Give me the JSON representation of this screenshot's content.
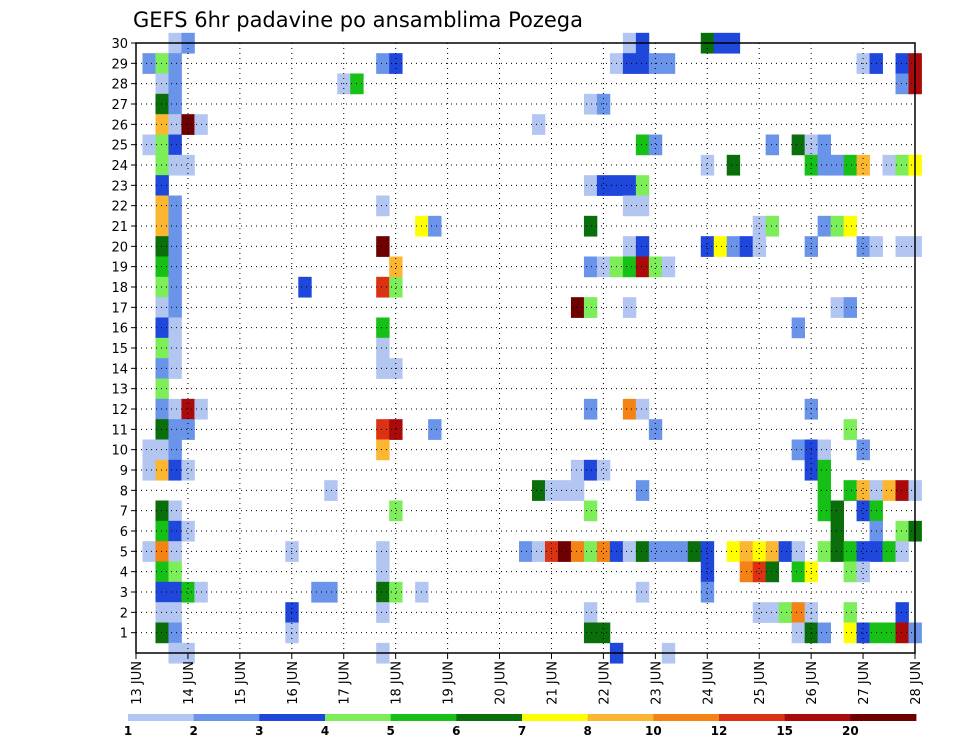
{
  "chart_data": {
    "type": "heatmap",
    "title": "GEFS 6hr padavine po ansamblima Pozega",
    "xlabel": "",
    "ylabel": "",
    "x_tick_labels": [
      "13 JUN",
      "14 JUN",
      "15 JUN",
      "16 JUN",
      "17 JUN",
      "18 JUN",
      "19 JUN",
      "20 JUN",
      "21 JUN",
      "22 JUN",
      "23 JUN",
      "24 JUN",
      "25 JUN",
      "26 JUN",
      "27 JUN",
      "28 JUN"
    ],
    "y_tick_labels": [
      "1",
      "2",
      "3",
      "4",
      "5",
      "6",
      "7",
      "8",
      "9",
      "10",
      "11",
      "12",
      "13",
      "14",
      "15",
      "16",
      "17",
      "18",
      "19",
      "20",
      "21",
      "22",
      "23",
      "24",
      "25",
      "26",
      "27",
      "28",
      "29",
      "30"
    ],
    "xlim": [
      0,
      15
    ],
    "ylim": [
      0,
      30
    ],
    "x_step_days": 0.25,
    "x_start_date": "13 JUN",
    "grid": true,
    "legend": {
      "placement": "bottom",
      "labels": [
        "1",
        "2",
        "3",
        "4",
        "5",
        "6",
        "7",
        "8",
        "10",
        "12",
        "15",
        "20"
      ],
      "colors": [
        "#b3c6f2",
        "#6a93ea",
        "#1f47db",
        "#7ded5a",
        "#16c016",
        "#0a6e0a",
        "#ffff00",
        "#fbb732",
        "#f58214",
        "#dc3214",
        "#aa0a0a",
        "#6e0000"
      ]
    },
    "cells": [
      [
        0.75,
        30,
        1
      ],
      [
        1.0,
        30,
        2
      ],
      [
        9.5,
        30,
        1
      ],
      [
        9.75,
        30,
        3
      ],
      [
        11.0,
        30,
        6
      ],
      [
        11.25,
        30,
        3
      ],
      [
        11.5,
        30,
        3
      ],
      [
        0.25,
        29,
        2
      ],
      [
        0.5,
        29,
        4
      ],
      [
        0.75,
        29,
        2
      ],
      [
        4.75,
        29,
        2
      ],
      [
        5.0,
        29,
        3
      ],
      [
        9.25,
        29,
        1
      ],
      [
        9.5,
        29,
        3
      ],
      [
        9.75,
        29,
        3
      ],
      [
        10.0,
        29,
        2
      ],
      [
        10.25,
        29,
        2
      ],
      [
        14.0,
        29,
        1
      ],
      [
        14.25,
        29,
        3
      ],
      [
        14.75,
        29,
        3
      ],
      [
        15.0,
        29,
        11
      ],
      [
        0.5,
        28,
        1
      ],
      [
        0.75,
        28,
        2
      ],
      [
        4.0,
        28,
        1
      ],
      [
        4.25,
        28,
        5
      ],
      [
        14.75,
        28,
        2
      ],
      [
        15.0,
        28,
        11
      ],
      [
        0.5,
        27,
        6
      ],
      [
        0.75,
        27,
        2
      ],
      [
        8.75,
        27,
        1
      ],
      [
        9.0,
        27,
        2
      ],
      [
        0.5,
        26,
        8
      ],
      [
        0.75,
        26,
        1
      ],
      [
        1.0,
        26,
        12
      ],
      [
        1.25,
        26,
        1
      ],
      [
        7.75,
        26,
        1
      ],
      [
        0.25,
        25,
        1
      ],
      [
        0.5,
        25,
        4
      ],
      [
        0.75,
        25,
        3
      ],
      [
        9.75,
        25,
        5
      ],
      [
        10.0,
        25,
        2
      ],
      [
        12.25,
        25,
        2
      ],
      [
        12.75,
        25,
        6
      ],
      [
        13.0,
        25,
        1
      ],
      [
        13.25,
        25,
        2
      ],
      [
        0.5,
        24,
        4
      ],
      [
        0.75,
        24,
        1
      ],
      [
        1.0,
        24,
        1
      ],
      [
        11.0,
        24,
        1
      ],
      [
        11.5,
        24,
        6
      ],
      [
        13.0,
        24,
        5
      ],
      [
        13.25,
        24,
        2
      ],
      [
        13.5,
        24,
        2
      ],
      [
        13.75,
        24,
        5
      ],
      [
        14.0,
        24,
        8
      ],
      [
        14.5,
        24,
        1
      ],
      [
        14.75,
        24,
        4
      ],
      [
        15.0,
        24,
        7
      ],
      [
        0.5,
        23,
        3
      ],
      [
        8.75,
        23,
        1
      ],
      [
        9.0,
        23,
        3
      ],
      [
        9.25,
        23,
        3
      ],
      [
        9.5,
        23,
        3
      ],
      [
        9.75,
        23,
        4
      ],
      [
        0.5,
        22,
        8
      ],
      [
        0.75,
        22,
        2
      ],
      [
        4.75,
        22,
        1
      ],
      [
        9.5,
        22,
        1
      ],
      [
        9.75,
        22,
        1
      ],
      [
        0.5,
        21,
        8
      ],
      [
        0.75,
        21,
        2
      ],
      [
        5.5,
        21,
        7
      ],
      [
        5.75,
        21,
        2
      ],
      [
        8.75,
        21,
        6
      ],
      [
        12.0,
        21,
        1
      ],
      [
        12.25,
        21,
        4
      ],
      [
        13.25,
        21,
        2
      ],
      [
        13.5,
        21,
        4
      ],
      [
        13.75,
        21,
        7
      ],
      [
        0.5,
        20,
        6
      ],
      [
        0.75,
        20,
        2
      ],
      [
        4.75,
        20,
        12
      ],
      [
        9.5,
        20,
        1
      ],
      [
        9.75,
        20,
        3
      ],
      [
        11.0,
        20,
        3
      ],
      [
        11.25,
        20,
        7
      ],
      [
        11.5,
        20,
        2
      ],
      [
        11.75,
        20,
        3
      ],
      [
        12.0,
        20,
        1
      ],
      [
        13.0,
        20,
        2
      ],
      [
        14.0,
        20,
        2
      ],
      [
        14.25,
        20,
        1
      ],
      [
        14.75,
        20,
        1
      ],
      [
        15.0,
        20,
        1
      ],
      [
        0.5,
        19,
        5
      ],
      [
        0.75,
        19,
        2
      ],
      [
        8.75,
        19,
        2
      ],
      [
        9.0,
        19,
        1
      ],
      [
        9.25,
        19,
        4
      ],
      [
        9.5,
        19,
        5
      ],
      [
        9.75,
        19,
        11
      ],
      [
        10.0,
        19,
        4
      ],
      [
        10.25,
        19,
        1
      ],
      [
        0.5,
        18,
        4
      ],
      [
        0.75,
        18,
        2
      ],
      [
        3.25,
        18,
        3
      ],
      [
        4.75,
        18,
        10
      ],
      [
        5.0,
        18,
        4
      ],
      [
        5.0,
        19,
        8
      ],
      [
        0.5,
        17,
        1
      ],
      [
        0.75,
        17,
        2
      ],
      [
        8.5,
        17,
        12
      ],
      [
        8.75,
        17,
        4
      ],
      [
        9.5,
        17,
        1
      ],
      [
        13.5,
        17,
        1
      ],
      [
        13.75,
        17,
        2
      ],
      [
        0.5,
        16,
        3
      ],
      [
        0.75,
        16,
        1
      ],
      [
        4.75,
        16,
        5
      ],
      [
        12.75,
        16,
        2
      ],
      [
        0.5,
        15,
        4
      ],
      [
        0.75,
        15,
        1
      ],
      [
        4.75,
        15,
        1
      ],
      [
        0.5,
        14,
        2
      ],
      [
        0.75,
        14,
        1
      ],
      [
        4.75,
        14,
        1
      ],
      [
        5.0,
        14,
        1
      ],
      [
        0.5,
        13,
        4
      ],
      [
        9.5,
        12,
        9
      ],
      [
        9.75,
        12,
        1
      ],
      [
        8.75,
        12,
        2
      ],
      [
        13.0,
        12,
        2
      ],
      [
        10.0,
        11,
        2
      ],
      [
        0.5,
        12,
        2
      ],
      [
        0.75,
        12,
        1
      ],
      [
        1.0,
        12,
        11
      ],
      [
        1.25,
        12,
        1
      ],
      [
        13.75,
        11,
        4
      ],
      [
        0.5,
        11,
        6
      ],
      [
        0.75,
        11,
        2
      ],
      [
        1.0,
        11,
        2
      ],
      [
        4.75,
        11,
        10
      ],
      [
        5.0,
        11,
        11
      ],
      [
        5.75,
        11,
        2
      ],
      [
        12.75,
        10,
        2
      ],
      [
        13.0,
        10,
        3
      ],
      [
        13.25,
        10,
        1
      ],
      [
        14.0,
        10,
        2
      ],
      [
        0.25,
        10,
        1
      ],
      [
        0.5,
        10,
        1
      ],
      [
        0.75,
        10,
        2
      ],
      [
        4.75,
        10,
        8
      ],
      [
        8.5,
        9,
        1
      ],
      [
        8.75,
        9,
        3
      ],
      [
        9.0,
        9,
        1
      ],
      [
        13.0,
        9,
        3
      ],
      [
        13.25,
        9,
        5
      ],
      [
        0.25,
        9,
        1
      ],
      [
        0.5,
        9,
        8
      ],
      [
        0.75,
        9,
        3
      ],
      [
        1.0,
        9,
        1
      ],
      [
        3.75,
        8,
        1
      ],
      [
        7.75,
        8,
        6
      ],
      [
        8.0,
        8,
        1
      ],
      [
        8.25,
        8,
        1
      ],
      [
        8.5,
        8,
        1
      ],
      [
        9.75,
        8,
        2
      ],
      [
        13.25,
        8,
        5
      ],
      [
        13.75,
        8,
        5
      ],
      [
        14.0,
        8,
        8
      ],
      [
        14.25,
        8,
        1
      ],
      [
        14.5,
        8,
        8
      ],
      [
        14.75,
        8,
        11
      ],
      [
        15.0,
        8,
        1
      ],
      [
        0.5,
        7,
        6
      ],
      [
        0.75,
        7,
        1
      ],
      [
        5.0,
        7,
        4
      ],
      [
        8.75,
        7,
        4
      ],
      [
        13.25,
        7,
        5
      ],
      [
        13.5,
        7,
        6
      ],
      [
        14.0,
        7,
        3
      ],
      [
        14.25,
        7,
        5
      ],
      [
        0.5,
        6,
        5
      ],
      [
        0.75,
        6,
        3
      ],
      [
        1.0,
        6,
        1
      ],
      [
        13.5,
        6,
        6
      ],
      [
        14.25,
        6,
        2
      ],
      [
        14.75,
        6,
        4
      ],
      [
        15.0,
        6,
        6
      ],
      [
        0.25,
        5,
        1
      ],
      [
        0.5,
        5,
        9
      ],
      [
        0.75,
        5,
        1
      ],
      [
        3.0,
        5,
        1
      ],
      [
        4.75,
        5,
        1
      ],
      [
        7.5,
        5,
        2
      ],
      [
        7.75,
        5,
        1
      ],
      [
        8.0,
        5,
        10
      ],
      [
        8.25,
        5,
        12
      ],
      [
        8.5,
        5,
        9
      ],
      [
        8.75,
        5,
        4
      ],
      [
        9.0,
        5,
        9
      ],
      [
        9.25,
        5,
        3
      ],
      [
        9.5,
        5,
        1
      ],
      [
        9.75,
        5,
        6
      ],
      [
        10.0,
        5,
        2
      ],
      [
        10.25,
        5,
        2
      ],
      [
        10.5,
        5,
        2
      ],
      [
        10.75,
        5,
        6
      ],
      [
        11.0,
        5,
        3
      ],
      [
        11.5,
        5,
        7
      ],
      [
        11.75,
        5,
        8
      ],
      [
        12.0,
        5,
        7
      ],
      [
        12.25,
        5,
        8
      ],
      [
        12.5,
        5,
        3
      ],
      [
        12.75,
        5,
        1
      ],
      [
        13.25,
        5,
        4
      ],
      [
        13.5,
        5,
        6
      ],
      [
        13.75,
        5,
        5
      ],
      [
        14.0,
        5,
        3
      ],
      [
        14.25,
        5,
        3
      ],
      [
        14.5,
        5,
        5
      ],
      [
        14.75,
        5,
        1
      ],
      [
        0.5,
        4,
        5
      ],
      [
        0.75,
        4,
        4
      ],
      [
        4.75,
        4,
        1
      ],
      [
        11.0,
        4,
        3
      ],
      [
        11.75,
        4,
        9
      ],
      [
        12.0,
        4,
        10
      ],
      [
        12.25,
        4,
        6
      ],
      [
        12.75,
        4,
        5
      ],
      [
        13.0,
        4,
        7
      ],
      [
        13.75,
        4,
        4
      ],
      [
        14.0,
        4,
        1
      ],
      [
        0.5,
        3,
        3
      ],
      [
        0.75,
        3,
        3
      ],
      [
        1.0,
        3,
        5
      ],
      [
        1.25,
        3,
        1
      ],
      [
        3.5,
        3,
        2
      ],
      [
        3.75,
        3,
        2
      ],
      [
        4.75,
        3,
        6
      ],
      [
        5.0,
        3,
        4
      ],
      [
        5.5,
        3,
        1
      ],
      [
        9.75,
        3,
        1
      ],
      [
        11.0,
        3,
        2
      ],
      [
        0.5,
        2,
        1
      ],
      [
        0.75,
        2,
        1
      ],
      [
        3.0,
        2,
        3
      ],
      [
        4.75,
        2,
        1
      ],
      [
        8.75,
        2,
        1
      ],
      [
        12.0,
        2,
        1
      ],
      [
        12.25,
        2,
        1
      ],
      [
        12.5,
        2,
        4
      ],
      [
        12.75,
        2,
        9
      ],
      [
        13.0,
        2,
        1
      ],
      [
        13.75,
        2,
        4
      ],
      [
        14.75,
        2,
        3
      ],
      [
        0.5,
        1,
        6
      ],
      [
        0.75,
        1,
        2
      ],
      [
        3.0,
        1,
        1
      ],
      [
        8.75,
        1,
        6
      ],
      [
        9.0,
        1,
        6
      ],
      [
        12.75,
        1,
        1
      ],
      [
        13.0,
        1,
        6
      ],
      [
        13.25,
        1,
        2
      ],
      [
        13.75,
        1,
        7
      ],
      [
        14.0,
        1,
        3
      ],
      [
        14.25,
        1,
        5
      ],
      [
        14.5,
        1,
        5
      ],
      [
        14.75,
        1,
        11
      ],
      [
        15.0,
        1,
        2
      ],
      [
        0.75,
        0,
        1
      ],
      [
        1.0,
        0,
        1
      ],
      [
        4.75,
        0,
        1
      ],
      [
        9.25,
        0,
        3
      ],
      [
        10.25,
        0,
        1
      ]
    ]
  }
}
